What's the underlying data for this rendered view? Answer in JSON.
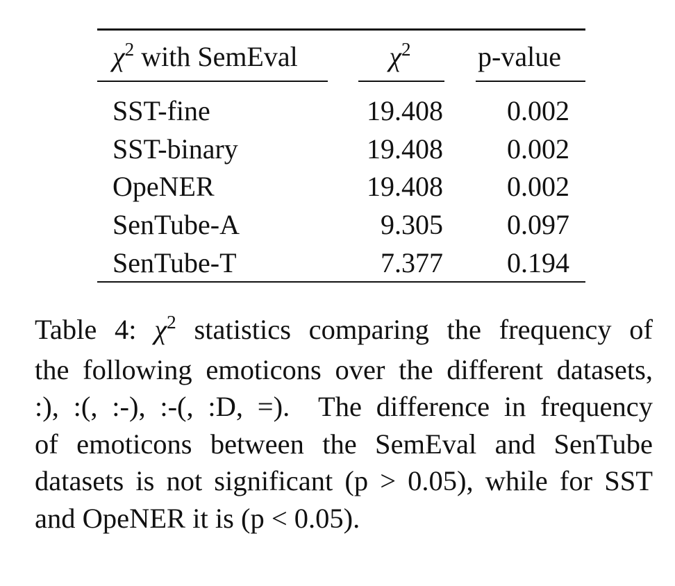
{
  "table": {
    "headers": {
      "col1_symbol": "χ",
      "col1_sup": "2",
      "col1_rest": " with SemEval",
      "col2_symbol": "χ",
      "col2_sup": "2",
      "col3": "p-value"
    },
    "rows": [
      {
        "name": "SST-fine",
        "chi2": "19.408",
        "p": "0.002"
      },
      {
        "name": "SST-binary",
        "chi2": "19.408",
        "p": "0.002"
      },
      {
        "name": "OpeNER",
        "chi2": "19.408",
        "p": "0.002"
      },
      {
        "name": "SenTube-A",
        "chi2": "9.305",
        "p": "0.097"
      },
      {
        "name": "SenTube-T",
        "chi2": "7.377",
        "p": "0.194"
      }
    ]
  },
  "caption": {
    "lines": [
      {
        "pre": "Table 4: ",
        "sym": "χ",
        "sup": "2",
        "post": " statistics comparing the frequency of"
      },
      {
        "text": "the following emoticons over the different datasets,"
      },
      {
        "text": ":), :(, :-), :-(, :D, =).  The difference in frequency"
      },
      {
        "text": "of emoticons between the SemEval and SenTube"
      },
      {
        "text": "datasets is not significant (p > 0.05), while for SST"
      },
      {
        "text": "and OpeNER it is (p < 0.05)."
      }
    ]
  }
}
